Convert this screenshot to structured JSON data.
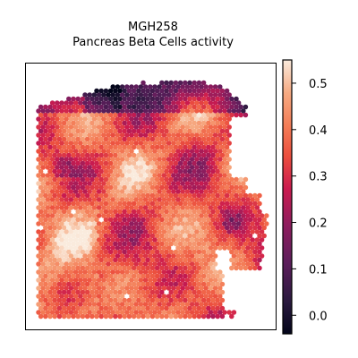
{
  "chart_data": {
    "type": "scatter",
    "subtype": "spatial-hexbin",
    "title_line1": "MGH258",
    "title_line2": "Pancreas Beta Cells activity",
    "xlabel": "",
    "ylabel": "",
    "colorbar": {
      "colormap": "rocket",
      "vmin": -0.04,
      "vmax": 0.55,
      "ticks": [
        0.5,
        0.4,
        0.3,
        0.2,
        0.1,
        0.0
      ],
      "tick_labels": [
        "0.5",
        "0.4",
        "0.3",
        "0.2",
        "0.1",
        "0.0"
      ]
    },
    "axes_frame": true,
    "grid": false,
    "description_regions": [
      {
        "region": "top-edge",
        "activity_range": [
          0.0,
          0.25
        ]
      },
      {
        "region": "interior",
        "activity_range": [
          0.3,
          0.5
        ]
      },
      {
        "region": "right-lobe",
        "activity_range": [
          0.25,
          0.45
        ]
      }
    ]
  }
}
